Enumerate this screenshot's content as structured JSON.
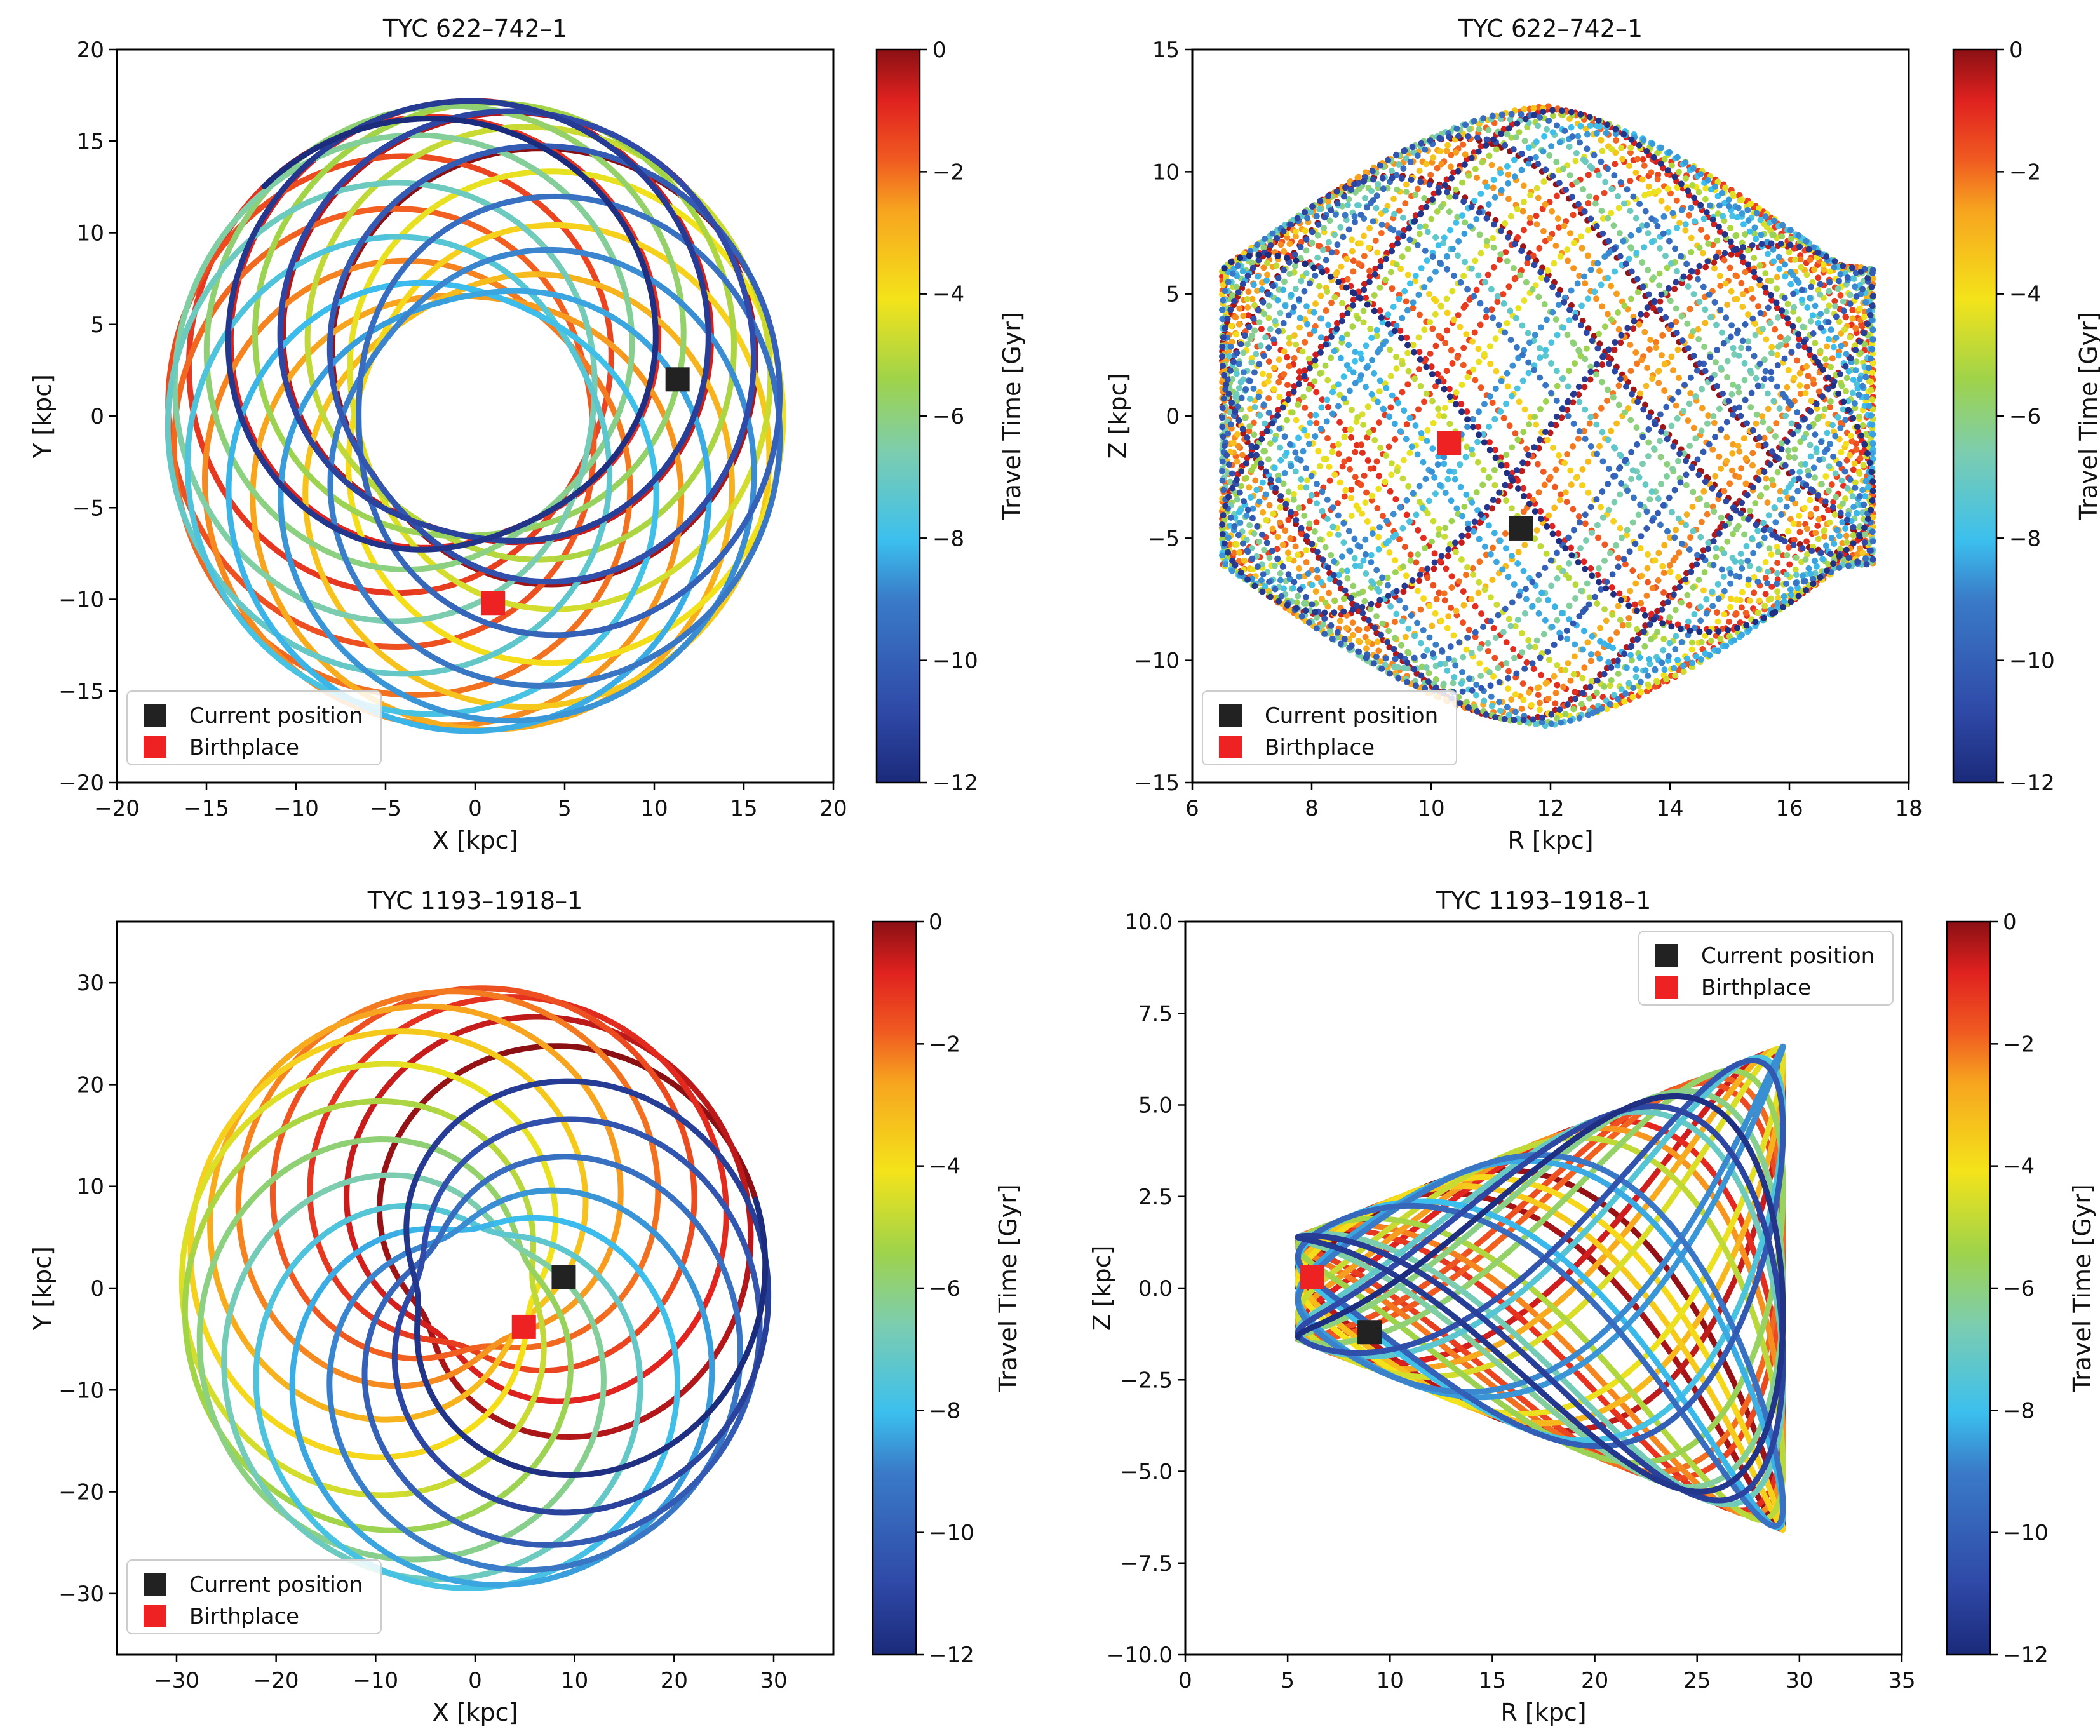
{
  "figure": {
    "colorscale": [
      "#1b2a7a",
      "#2f4aa8",
      "#3a7bc8",
      "#3bbfee",
      "#7ccdb0",
      "#9fd34a",
      "#f4e31a",
      "#f7a51f",
      "#f05a21",
      "#e0221f",
      "#8b1014"
    ]
  },
  "chart_data": [
    {
      "type": "orbit-scatter",
      "panel": "top-left",
      "title": "TYC 622–742–1",
      "xlabel": "X [kpc]",
      "ylabel": "Y [kpc]",
      "xlim": [
        -20,
        20
      ],
      "ylim": [
        -20,
        20
      ],
      "xticks": [
        -20,
        -15,
        -10,
        -5,
        0,
        5,
        10,
        15,
        20
      ],
      "yticks": [
        -20,
        -15,
        -10,
        -5,
        0,
        5,
        10,
        15,
        20
      ],
      "colorbar": {
        "label": "Travel Time [Gyr]",
        "range": [
          -12,
          0
        ],
        "ticks": [
          0,
          -2,
          -4,
          -6,
          -8,
          -10,
          -12
        ]
      },
      "legend": {
        "position": "lower-left",
        "items": [
          {
            "label": "Current position",
            "color": "#222222"
          },
          {
            "label": "Birthplace",
            "color": "#ee2222"
          }
        ]
      },
      "orbit": {
        "model": "rosette",
        "rmin": 6.5,
        "rmax": 17.2,
        "loops": 22,
        "precession_deg": 38,
        "style": "line"
      },
      "current_position": [
        11.3,
        2.0
      ],
      "birthplace": [
        1.0,
        -10.2
      ]
    },
    {
      "type": "orbit-scatter",
      "panel": "top-right",
      "title": "TYC 622–742–1",
      "xlabel": "R [kpc]",
      "ylabel": "Z [kpc]",
      "xlim": [
        6,
        18
      ],
      "ylim": [
        -15,
        15
      ],
      "xticks": [
        6,
        8,
        10,
        12,
        14,
        16,
        18
      ],
      "yticks": [
        -15,
        -10,
        -5,
        0,
        5,
        10,
        15
      ],
      "colorbar": {
        "label": "Travel Time [Gyr]",
        "range": [
          -12,
          0
        ],
        "ticks": [
          0,
          -2,
          -4,
          -6,
          -8,
          -10,
          -12
        ]
      },
      "legend": {
        "position": "lower-left",
        "items": [
          {
            "label": "Current position",
            "color": "#222222"
          },
          {
            "label": "Birthplace",
            "color": "#ee2222"
          }
        ]
      },
      "orbit": {
        "model": "meridional",
        "rmin": 6.5,
        "rmax": 17.4,
        "zmax": 12.7,
        "style": "dots"
      },
      "current_position": [
        11.5,
        -4.6
      ],
      "birthplace": [
        10.3,
        -1.1
      ]
    },
    {
      "type": "orbit-scatter",
      "panel": "bottom-left",
      "title": "TYC 1193–1918–1",
      "xlabel": "X [kpc]",
      "ylabel": "Y [kpc]",
      "xlim": [
        -36,
        36
      ],
      "ylim": [
        -36,
        36
      ],
      "xticks": [
        -30,
        -20,
        -10,
        0,
        10,
        20,
        30
      ],
      "yticks": [
        -30,
        -20,
        -10,
        0,
        10,
        20,
        30
      ],
      "colorbar": {
        "label": "Travel Time [Gyr]",
        "range": [
          -12,
          0
        ],
        "ticks": [
          0,
          -2,
          -4,
          -6,
          -8,
          -10,
          -12
        ]
      },
      "legend": {
        "position": "lower-left",
        "items": [
          {
            "label": "Current position",
            "color": "#222222"
          },
          {
            "label": "Birthplace",
            "color": "#ee2222"
          }
        ]
      },
      "orbit": {
        "model": "rosette",
        "rmin": 5.8,
        "rmax": 29.5,
        "loops": 16,
        "precession_deg": 22.5,
        "style": "line"
      },
      "current_position": [
        8.9,
        1.1
      ],
      "birthplace": [
        4.9,
        -3.8
      ]
    },
    {
      "type": "orbit-scatter",
      "panel": "bottom-right",
      "title": "TYC 1193–1918–1",
      "xlabel": "R [kpc]",
      "ylabel": "Z [kpc]",
      "xlim": [
        0,
        35
      ],
      "ylim": [
        -10,
        10
      ],
      "xticks": [
        0,
        5,
        10,
        15,
        20,
        25,
        30,
        35
      ],
      "yticks": [
        -10.0,
        -7.5,
        -5.0,
        -2.5,
        0.0,
        2.5,
        5.0,
        7.5,
        10.0
      ],
      "yticklabels": [
        "−10.0",
        "−7.5",
        "−5.0",
        "−2.5",
        "0.0",
        "2.5",
        "5.0",
        "7.5",
        "10.0"
      ],
      "colorbar": {
        "label": "Travel Time [Gyr]",
        "range": [
          -12,
          0
        ],
        "ticks": [
          0,
          -2,
          -4,
          -6,
          -8,
          -10,
          -12
        ]
      },
      "legend": {
        "position": "upper-right",
        "items": [
          {
            "label": "Current position",
            "color": "#222222"
          },
          {
            "label": "Birthplace",
            "color": "#ee2222"
          }
        ]
      },
      "orbit": {
        "model": "meridional-wedge",
        "rmin": 5.5,
        "rmax": 29.2,
        "zmax": 6.6,
        "zmin_at_rmin": 1.4,
        "style": "line"
      },
      "current_position": [
        9.0,
        -1.2
      ],
      "birthplace": [
        6.2,
        0.3
      ]
    }
  ]
}
